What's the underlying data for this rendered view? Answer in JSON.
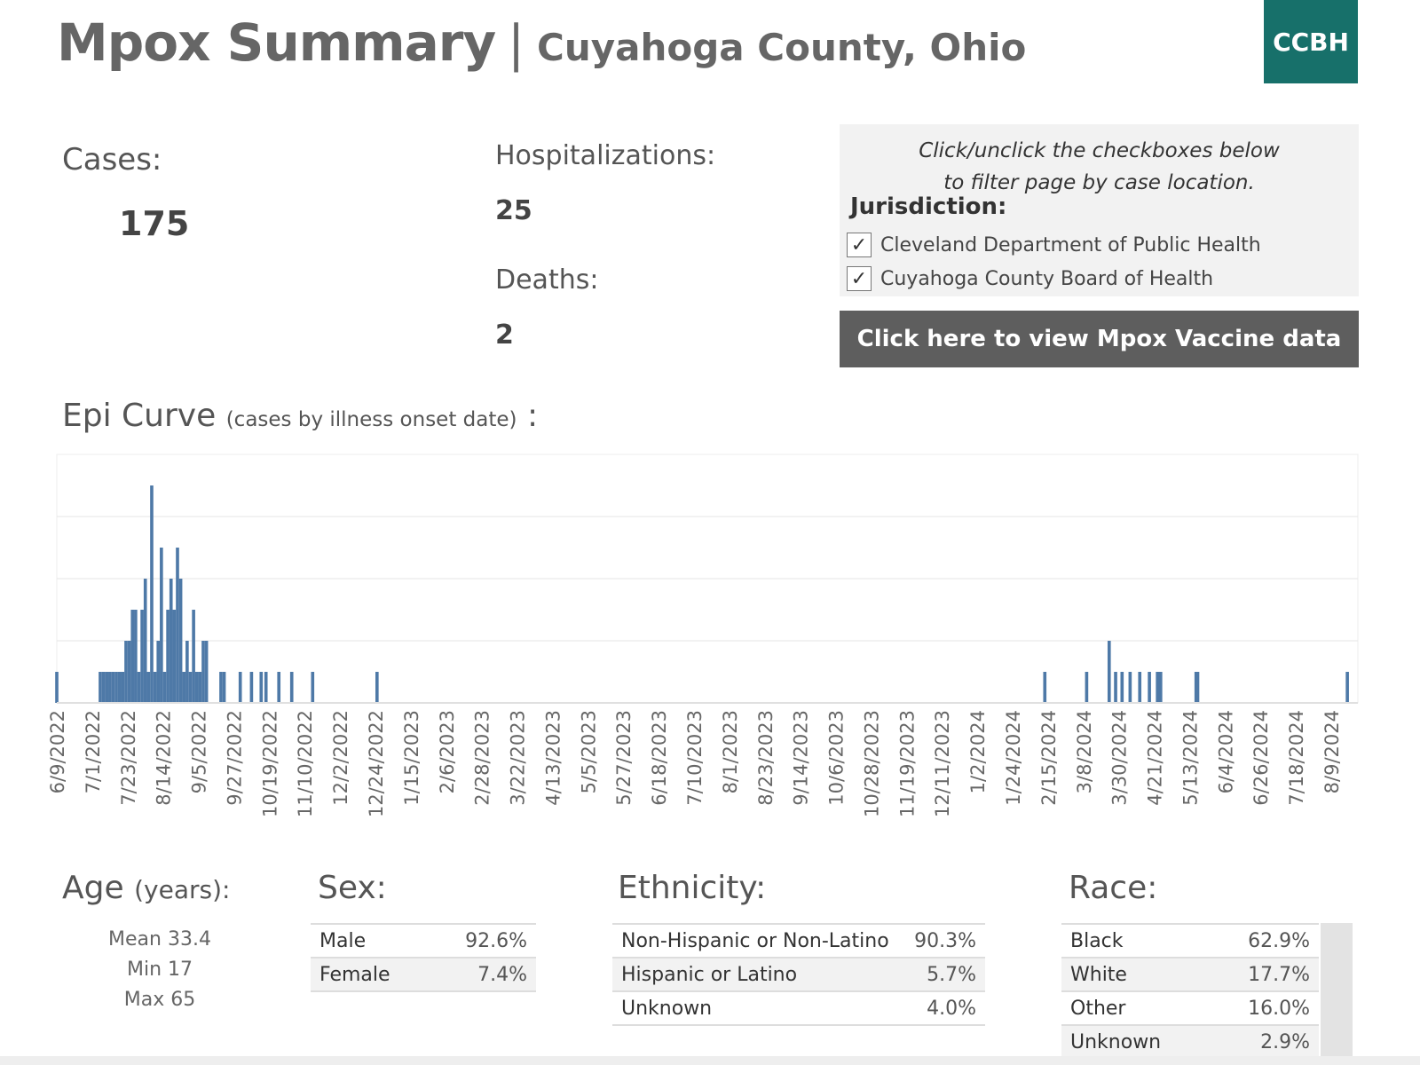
{
  "header": {
    "title": "Mpox Summary",
    "separator": "|",
    "subtitle": "Cuyahoga County, Ohio",
    "logo_text": "CCBH",
    "logo_color": "#17706a"
  },
  "kpis": {
    "cases_label": "Cases:",
    "cases_value": "175",
    "hosp_label": "Hospitalizations:",
    "hosp_value": "25",
    "deaths_label": "Deaths:",
    "deaths_value": "2"
  },
  "filter": {
    "note_line1": "Click/unclick the checkboxes below",
    "note_line2": "to filter page by case location.",
    "heading": "Jurisdiction:",
    "items": [
      {
        "label": "Cleveland Department of Public Health",
        "checked": true,
        "mark": "✓"
      },
      {
        "label": "Cuyahoga County Board of Health",
        "checked": true,
        "mark": "✓"
      }
    ]
  },
  "vaccine_button": {
    "label": "Click here to view Mpox Vaccine data",
    "color": "#5e5e5e"
  },
  "epi": {
    "title": "Epi Curve",
    "title_note": "(cases by illness onset date)",
    "title_colon": ":"
  },
  "chart_data": {
    "type": "bar",
    "title": "",
    "xlabel": "",
    "ylabel": "",
    "ylim": [
      0,
      8
    ],
    "grid": true,
    "bar_color": "#4e79a7",
    "x_axis_type": "date",
    "x_ticks": [
      "6/9/2022",
      "7/1/2022",
      "7/23/2022",
      "8/14/2022",
      "9/5/2022",
      "9/27/2022",
      "10/19/2022",
      "11/10/2022",
      "12/2/2022",
      "12/24/2022",
      "1/15/2023",
      "2/6/2023",
      "2/28/2023",
      "3/22/2023",
      "4/13/2023",
      "5/5/2023",
      "5/27/2023",
      "6/18/2023",
      "7/10/2023",
      "8/1/2023",
      "8/23/2023",
      "9/14/2023",
      "10/6/2023",
      "10/28/2023",
      "11/19/2023",
      "12/11/2023",
      "1/2/2024",
      "1/24/2024",
      "2/15/2024",
      "3/8/2024",
      "3/30/2024",
      "4/21/2024",
      "5/13/2024",
      "6/4/2024",
      "6/26/2024",
      "7/18/2024",
      "8/9/2024"
    ],
    "points": [
      {
        "date": "2022-06-09",
        "value": 1
      },
      {
        "date": "2022-07-06",
        "value": 1
      },
      {
        "date": "2022-07-08",
        "value": 1
      },
      {
        "date": "2022-07-10",
        "value": 1
      },
      {
        "date": "2022-07-12",
        "value": 1
      },
      {
        "date": "2022-07-14",
        "value": 1
      },
      {
        "date": "2022-07-16",
        "value": 1
      },
      {
        "date": "2022-07-18",
        "value": 1
      },
      {
        "date": "2022-07-20",
        "value": 1
      },
      {
        "date": "2022-07-22",
        "value": 2
      },
      {
        "date": "2022-07-24",
        "value": 2
      },
      {
        "date": "2022-07-26",
        "value": 3
      },
      {
        "date": "2022-07-28",
        "value": 3
      },
      {
        "date": "2022-07-30",
        "value": 1
      },
      {
        "date": "2022-08-01",
        "value": 3
      },
      {
        "date": "2022-08-03",
        "value": 4
      },
      {
        "date": "2022-08-05",
        "value": 1
      },
      {
        "date": "2022-08-07",
        "value": 7
      },
      {
        "date": "2022-08-09",
        "value": 1
      },
      {
        "date": "2022-08-11",
        "value": 2
      },
      {
        "date": "2022-08-13",
        "value": 5
      },
      {
        "date": "2022-08-15",
        "value": 1
      },
      {
        "date": "2022-08-17",
        "value": 3
      },
      {
        "date": "2022-08-19",
        "value": 4
      },
      {
        "date": "2022-08-21",
        "value": 3
      },
      {
        "date": "2022-08-23",
        "value": 5
      },
      {
        "date": "2022-08-25",
        "value": 4
      },
      {
        "date": "2022-08-27",
        "value": 1
      },
      {
        "date": "2022-08-29",
        "value": 2
      },
      {
        "date": "2022-08-31",
        "value": 1
      },
      {
        "date": "2022-09-02",
        "value": 3
      },
      {
        "date": "2022-09-04",
        "value": 1
      },
      {
        "date": "2022-09-06",
        "value": 1
      },
      {
        "date": "2022-09-08",
        "value": 2
      },
      {
        "date": "2022-09-10",
        "value": 2
      },
      {
        "date": "2022-09-19",
        "value": 1
      },
      {
        "date": "2022-09-21",
        "value": 1
      },
      {
        "date": "2022-10-01",
        "value": 1
      },
      {
        "date": "2022-10-08",
        "value": 1
      },
      {
        "date": "2022-10-14",
        "value": 1
      },
      {
        "date": "2022-10-17",
        "value": 1
      },
      {
        "date": "2022-10-25",
        "value": 1
      },
      {
        "date": "2022-11-02",
        "value": 1
      },
      {
        "date": "2022-11-15",
        "value": 1
      },
      {
        "date": "2022-12-25",
        "value": 1
      },
      {
        "date": "2024-02-13",
        "value": 1
      },
      {
        "date": "2024-03-10",
        "value": 1
      },
      {
        "date": "2024-03-24",
        "value": 2
      },
      {
        "date": "2024-03-28",
        "value": 1
      },
      {
        "date": "2024-04-01",
        "value": 1
      },
      {
        "date": "2024-04-06",
        "value": 1
      },
      {
        "date": "2024-04-12",
        "value": 1
      },
      {
        "date": "2024-04-18",
        "value": 1
      },
      {
        "date": "2024-04-23",
        "value": 1
      },
      {
        "date": "2024-04-25",
        "value": 1
      },
      {
        "date": "2024-05-17",
        "value": 1
      },
      {
        "date": "2024-05-18",
        "value": 1
      },
      {
        "date": "2024-08-19",
        "value": 1
      }
    ]
  },
  "age": {
    "title": "Age",
    "title_note": "(years):",
    "mean": "Mean 33.4",
    "min": "Min 17",
    "max": "Max 65"
  },
  "sex": {
    "title": "Sex:",
    "rows": [
      {
        "label": "Male",
        "value": "92.6%"
      },
      {
        "label": "Female",
        "value": "7.4%"
      }
    ]
  },
  "ethnicity": {
    "title": "Ethnicity:",
    "rows": [
      {
        "label": "Non-Hispanic or Non-Latino",
        "value": "90.3%"
      },
      {
        "label": "Hispanic or Latino",
        "value": "5.7%"
      },
      {
        "label": "Unknown",
        "value": "4.0%"
      }
    ]
  },
  "race": {
    "title": "Race:",
    "rows": [
      {
        "label": "Black",
        "value": "62.9%"
      },
      {
        "label": "White",
        "value": "17.7%"
      },
      {
        "label": "Other",
        "value": "16.0%"
      },
      {
        "label": "Unknown",
        "value": "2.9%"
      }
    ]
  }
}
